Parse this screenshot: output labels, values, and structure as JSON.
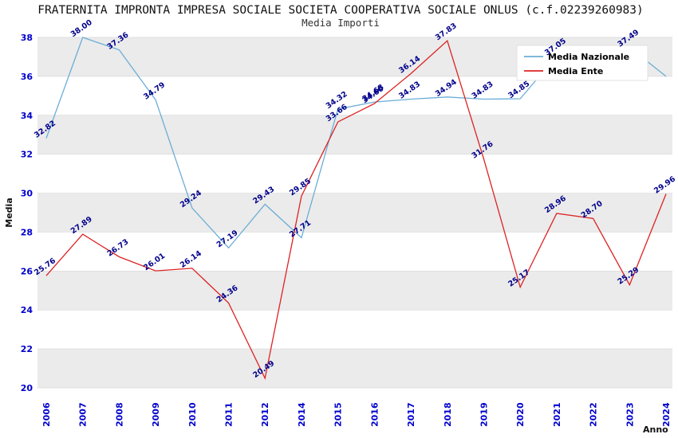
{
  "chart_data": {
    "type": "line",
    "title": "FRATERNITA IMPRONTA IMPRESA SOCIALE SOCIETA COOPERATIVA SOCIALE ONLUS (c.f.02239260983)",
    "subtitle": "Media Importi",
    "xlabel": "Anno",
    "ylabel": "Media",
    "ylim": [
      20,
      38
    ],
    "yticks": [
      20,
      22,
      24,
      26,
      28,
      30,
      32,
      34,
      36,
      38
    ],
    "grid": true,
    "band_color": "#ebebeb",
    "tick_color": "#0000cc",
    "point_label_color": "#00008b",
    "legend_position": "top-right",
    "categories": [
      "2006",
      "2007",
      "2008",
      "2009",
      "2010",
      "2011",
      "2012",
      "2014",
      "2015",
      "2016",
      "2017",
      "2018",
      "2019",
      "2020",
      "2021",
      "2022",
      "2023",
      "2024"
    ],
    "series": [
      {
        "name": "Media Nazionale",
        "color": "#6baed6",
        "values": [
          32.82,
          38.0,
          37.36,
          34.79,
          29.24,
          27.19,
          29.43,
          27.71,
          34.32,
          34.68,
          34.83,
          34.94,
          34.83,
          34.85,
          37.05,
          37.2,
          37.49,
          36.0
        ],
        "labels": [
          "32.82",
          "38.00",
          "37.36",
          "34.79",
          "29.24",
          "27.19",
          "29.43",
          "27.71",
          "34.32",
          "34.68",
          "34.83",
          "34.94",
          "34.83",
          "34.85",
          "37.05",
          null,
          "37.49",
          null
        ]
      },
      {
        "name": "Media Ente",
        "color": "#dd2222",
        "values": [
          25.76,
          27.89,
          26.73,
          26.01,
          26.14,
          24.36,
          20.49,
          29.85,
          33.66,
          34.6,
          36.14,
          37.83,
          31.76,
          25.17,
          28.96,
          28.7,
          25.29,
          29.96
        ],
        "labels": [
          "25.76",
          "27.89",
          "26.73",
          "26.01",
          "26.14",
          "24.36",
          "20.49",
          "29.85",
          "33.66",
          "34.60",
          "36.14",
          "37.83",
          "31.76",
          "25.17",
          "28.96",
          "28.70",
          "25.29",
          "29.96"
        ]
      }
    ]
  }
}
